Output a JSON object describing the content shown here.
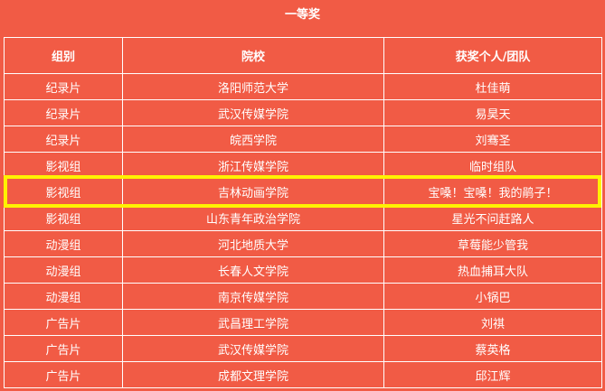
{
  "title": "一等奖",
  "highlight_color": "#fff200",
  "background_color": "#f15b45",
  "table": {
    "headers": [
      "组别",
      "院校",
      "获奖个人/团队"
    ],
    "rows": [
      [
        "纪录片",
        "洛阳师范大学",
        "杜佳萌"
      ],
      [
        "纪录片",
        "武汉传媒学院",
        "易昊天"
      ],
      [
        "纪录片",
        "皖西学院",
        "刘骞圣"
      ],
      [
        "影视组",
        "浙江传媒学院",
        "临时组队"
      ],
      [
        "影视组",
        "吉林动画学院",
        "宝嗓！宝嗓！我的鹃子！"
      ],
      [
        "影视组",
        "山东青年政治学院",
        "星光不问赶路人"
      ],
      [
        "动漫组",
        "河北地质大学",
        "草莓能少管我"
      ],
      [
        "动漫组",
        "长春人文学院",
        "热血捕耳大队"
      ],
      [
        "动漫组",
        "南京传媒学院",
        "小锅巴"
      ],
      [
        "广告片",
        "武昌理工学院",
        "刘祺"
      ],
      [
        "广告片",
        "武汉传媒学院",
        "蔡英格"
      ],
      [
        "广告片",
        "成都文理学院",
        "邱江辉"
      ]
    ],
    "highlighted_row": 4
  }
}
